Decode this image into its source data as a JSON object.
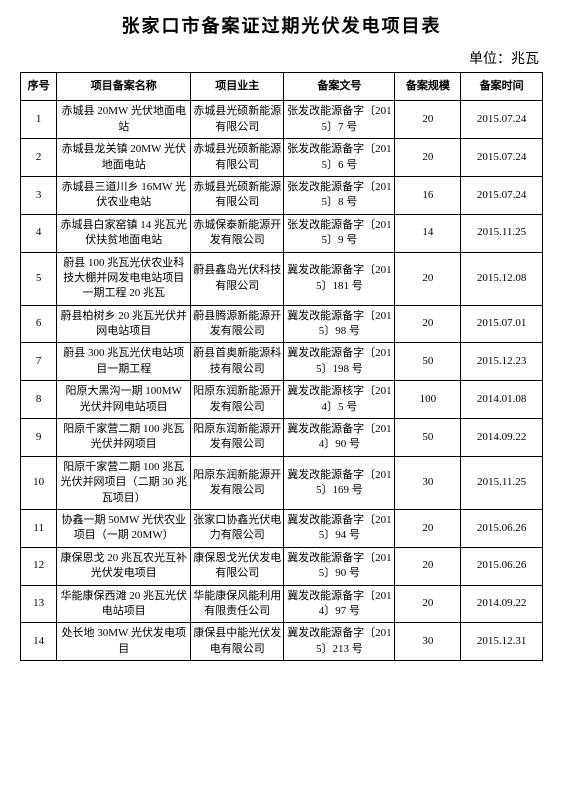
{
  "title": "张家口市备案证过期光伏发电项目表",
  "unit": "单位：兆瓦",
  "columns": [
    "序号",
    "项目备案名称",
    "项目业主",
    "备案文号",
    "备案规模",
    "备案时间"
  ],
  "rows": [
    [
      "1",
      "赤城县 20MW 光伏地面电站",
      "赤城县光硕新能源有限公司",
      "张发改能源备字〔2015〕7 号",
      "20",
      "2015.07.24"
    ],
    [
      "2",
      "赤城县龙关镇 20MW 光伏地面电站",
      "赤城县光硕新能源有限公司",
      "张发改能源备字〔2015〕6 号",
      "20",
      "2015.07.24"
    ],
    [
      "3",
      "赤城县三道川乡 16MW 光伏农业电站",
      "赤城县光硕新能源有限公司",
      "张发改能源备字〔2015〕8 号",
      "16",
      "2015.07.24"
    ],
    [
      "4",
      "赤城县白家窑镇 14 兆瓦光伏扶贫地面电站",
      "赤城保泰新能源开发有限公司",
      "张发改能源备字〔2015〕9 号",
      "14",
      "2015.11.25"
    ],
    [
      "5",
      "蔚县 100 兆瓦光伏农业科技大棚并网发电电站项目一期工程 20 兆瓦",
      "蔚县鑫岛光伏科技有限公司",
      "冀发改能源备字〔2015〕181 号",
      "20",
      "2015.12.08"
    ],
    [
      "6",
      "蔚县柏树乡 20 兆瓦光伏并网电站项目",
      "蔚县腾源新能源开发有限公司",
      "冀发改能源备字〔2015〕98 号",
      "20",
      "2015.07.01"
    ],
    [
      "7",
      "蔚县 300 兆瓦光伏电站项目一期工程",
      "蔚县首奥新能源科技有限公司",
      "冀发改能源备字〔2015〕198 号",
      "50",
      "2015.12.23"
    ],
    [
      "8",
      "阳原大黑沟一期 100MW 光伏并网电站项目",
      "阳原东润新能源开发有限公司",
      "冀发改能源核字〔2014〕5 号",
      "100",
      "2014.01.08"
    ],
    [
      "9",
      "阳原千家营二期 100 兆瓦光伏并网项目",
      "阳原东润新能源开发有限公司",
      "冀发改能源备字〔2014〕90 号",
      "50",
      "2014.09.22"
    ],
    [
      "10",
      "阳原千家营二期 100 兆瓦光伏并网项目（二期 30 兆瓦项目）",
      "阳原东润新能源开发有限公司",
      "冀发改能源备字〔2015〕169 号",
      "30",
      "2015.11.25"
    ],
    [
      "11",
      "协鑫一期 50MW 光伏农业项目（一期 20MW）",
      "张家口协鑫光伏电力有限公司",
      "冀发改能源备字〔2015〕94 号",
      "20",
      "2015.06.26"
    ],
    [
      "12",
      "康保恩戈 20 兆瓦农光互补光伏发电项目",
      "康保恩戈光伏发电有限公司",
      "冀发改能源备字〔2015〕90 号",
      "20",
      "2015.06.26"
    ],
    [
      "13",
      "华能康保西滩 20 兆瓦光伏电站项目",
      "华能康保风能利用有限责任公司",
      "冀发改能源备字〔2014〕97 号",
      "20",
      "2014.09.22"
    ],
    [
      "14",
      "处长地 30MW 光伏发电项目",
      "康保县中能光伏发电有限公司",
      "冀发改能源备字〔2015〕213 号",
      "30",
      "2015.12.31"
    ]
  ]
}
